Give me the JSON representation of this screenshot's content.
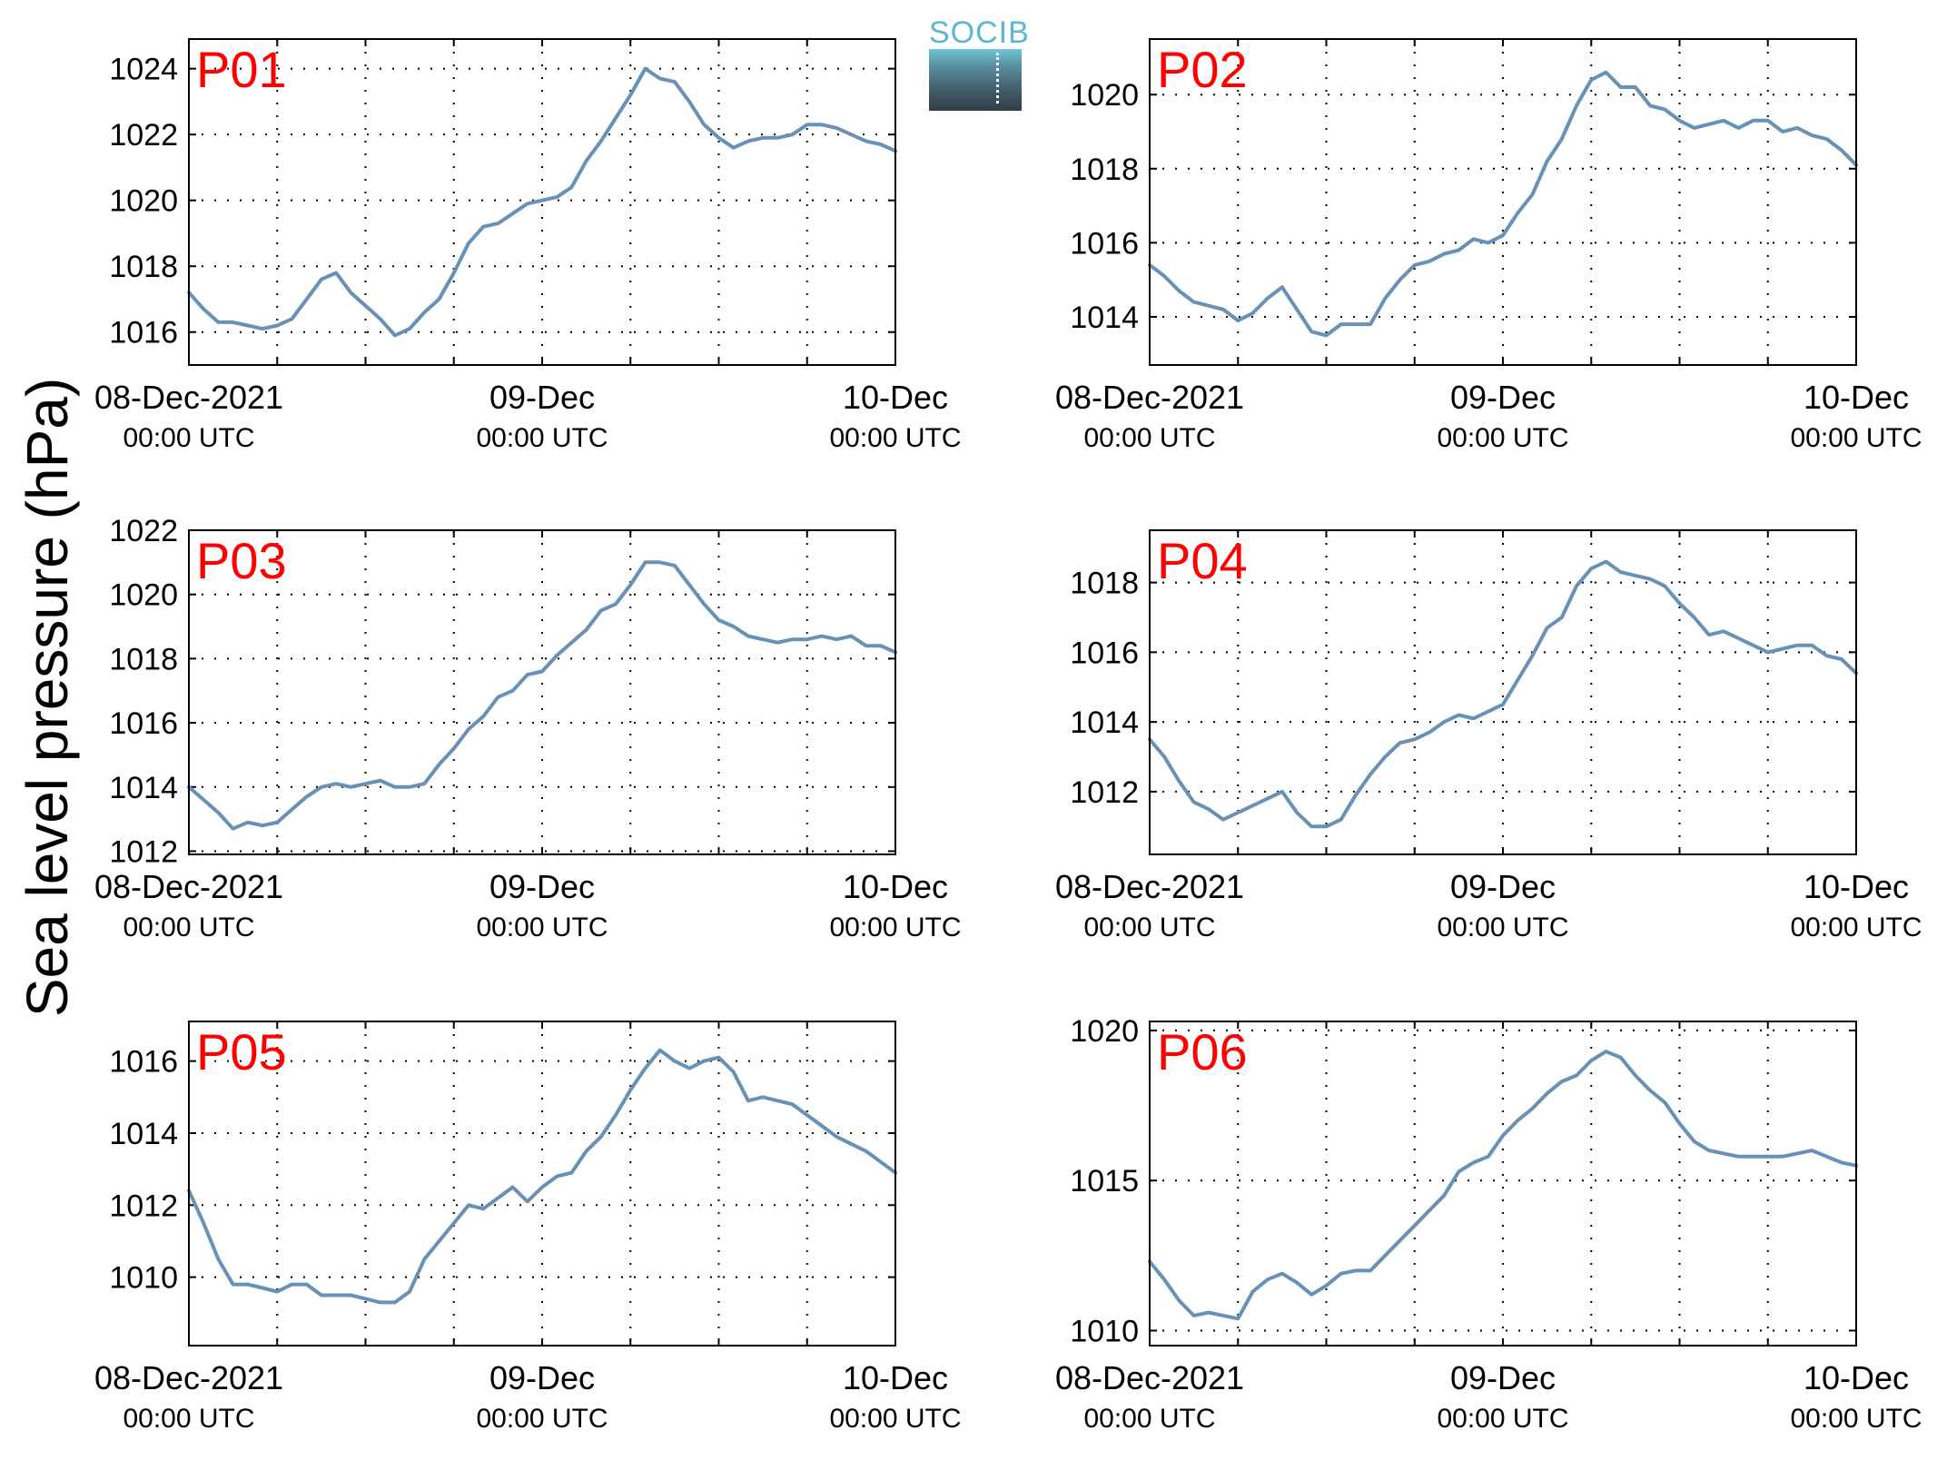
{
  "ylabel": "Sea level pressure (hPa)",
  "logo_text": "SOCIB",
  "colors": {
    "line": "#6791b7",
    "station_label": "#ff0000",
    "grid": "#000000"
  },
  "x_tick_labels": [
    {
      "date": "08-Dec-2021",
      "time": "00:00 UTC"
    },
    {
      "date": "09-Dec",
      "time": "00:00 UTC"
    },
    {
      "date": "10-Dec",
      "time": "00:00 UTC"
    }
  ],
  "chart_data": [
    {
      "type": "line",
      "title": "P01",
      "xlim": [
        0,
        48
      ],
      "ylim": [
        1015,
        1024.9
      ],
      "yticks": [
        1016,
        1018,
        1020,
        1022,
        1024
      ],
      "series": [
        {
          "x": [
            0,
            1,
            2,
            3,
            4,
            5,
            6,
            7,
            8,
            9,
            10,
            11,
            12,
            13,
            14,
            15,
            16,
            17,
            18,
            19,
            20,
            21,
            22,
            23,
            24,
            25,
            26,
            27,
            28,
            29,
            30,
            31,
            32,
            33,
            34,
            35,
            36,
            37,
            38,
            39,
            40,
            41,
            42,
            43,
            44,
            45,
            46,
            47,
            48
          ],
          "y": [
            1017.2,
            1016.7,
            1016.3,
            1016.3,
            1016.2,
            1016.1,
            1016.2,
            1016.4,
            1017.0,
            1017.6,
            1017.8,
            1017.2,
            1016.8,
            1016.4,
            1015.9,
            1016.1,
            1016.6,
            1017.0,
            1017.8,
            1018.7,
            1019.2,
            1019.3,
            1019.6,
            1019.9,
            1020.0,
            1020.1,
            1020.4,
            1021.2,
            1021.8,
            1022.5,
            1023.2,
            1024.0,
            1023.7,
            1023.6,
            1023.0,
            1022.3,
            1021.9,
            1021.6,
            1021.8,
            1021.9,
            1021.9,
            1022.0,
            1022.3,
            1022.3,
            1022.2,
            1022.0,
            1021.8,
            1021.7,
            1021.5
          ]
        }
      ]
    },
    {
      "type": "line",
      "title": "P02",
      "xlim": [
        0,
        48
      ],
      "ylim": [
        1012.7,
        1021.5
      ],
      "yticks": [
        1014,
        1016,
        1018,
        1020
      ],
      "series": [
        {
          "x": [
            0,
            1,
            2,
            3,
            4,
            5,
            6,
            7,
            8,
            9,
            10,
            11,
            12,
            13,
            14,
            15,
            16,
            17,
            18,
            19,
            20,
            21,
            22,
            23,
            24,
            25,
            26,
            27,
            28,
            29,
            30,
            31,
            32,
            33,
            34,
            35,
            36,
            37,
            38,
            39,
            40,
            41,
            42,
            43,
            44,
            45,
            46,
            47,
            48
          ],
          "y": [
            1015.4,
            1015.1,
            1014.7,
            1014.4,
            1014.3,
            1014.2,
            1013.9,
            1014.1,
            1014.5,
            1014.8,
            1014.2,
            1013.6,
            1013.5,
            1013.8,
            1013.8,
            1013.8,
            1014.5,
            1015.0,
            1015.4,
            1015.5,
            1015.7,
            1015.8,
            1016.1,
            1016.0,
            1016.2,
            1016.8,
            1017.3,
            1018.2,
            1018.8,
            1019.7,
            1020.4,
            1020.6,
            1020.2,
            1020.2,
            1019.7,
            1019.6,
            1019.3,
            1019.1,
            1019.2,
            1019.3,
            1019.1,
            1019.3,
            1019.3,
            1019.0,
            1019.1,
            1018.9,
            1018.8,
            1018.5,
            1018.1
          ]
        }
      ]
    },
    {
      "type": "line",
      "title": "P03",
      "xlim": [
        0,
        48
      ],
      "ylim": [
        1011.9,
        1022
      ],
      "yticks": [
        1012,
        1014,
        1016,
        1018,
        1020,
        1022
      ],
      "series": [
        {
          "x": [
            0,
            1,
            2,
            3,
            4,
            5,
            6,
            7,
            8,
            9,
            10,
            11,
            12,
            13,
            14,
            15,
            16,
            17,
            18,
            19,
            20,
            21,
            22,
            23,
            24,
            25,
            26,
            27,
            28,
            29,
            30,
            31,
            32,
            33,
            34,
            35,
            36,
            37,
            38,
            39,
            40,
            41,
            42,
            43,
            44,
            45,
            46,
            47,
            48
          ],
          "y": [
            1014.0,
            1013.6,
            1013.2,
            1012.7,
            1012.9,
            1012.8,
            1012.9,
            1013.3,
            1013.7,
            1014.0,
            1014.1,
            1014.0,
            1014.1,
            1014.2,
            1014.0,
            1014.0,
            1014.1,
            1014.7,
            1015.2,
            1015.8,
            1016.2,
            1016.8,
            1017.0,
            1017.5,
            1017.6,
            1018.1,
            1018.5,
            1018.9,
            1019.5,
            1019.7,
            1020.3,
            1021.0,
            1021.0,
            1020.9,
            1020.3,
            1019.7,
            1019.2,
            1019.0,
            1018.7,
            1018.6,
            1018.5,
            1018.6,
            1018.6,
            1018.7,
            1018.6,
            1018.7,
            1018.4,
            1018.4,
            1018.2
          ]
        }
      ]
    },
    {
      "type": "line",
      "title": "P04",
      "xlim": [
        0,
        48
      ],
      "ylim": [
        1010.2,
        1019.5
      ],
      "yticks": [
        1012,
        1014,
        1016,
        1018
      ],
      "series": [
        {
          "x": [
            0,
            1,
            2,
            3,
            4,
            5,
            6,
            7,
            8,
            9,
            10,
            11,
            12,
            13,
            14,
            15,
            16,
            17,
            18,
            19,
            20,
            21,
            22,
            23,
            24,
            25,
            26,
            27,
            28,
            29,
            30,
            31,
            32,
            33,
            34,
            35,
            36,
            37,
            38,
            39,
            40,
            41,
            42,
            43,
            44,
            45,
            46,
            47,
            48
          ],
          "y": [
            1013.5,
            1013.0,
            1012.3,
            1011.7,
            1011.5,
            1011.2,
            1011.4,
            1011.6,
            1011.8,
            1012.0,
            1011.4,
            1011.0,
            1011.0,
            1011.2,
            1011.9,
            1012.5,
            1013.0,
            1013.4,
            1013.5,
            1013.7,
            1014.0,
            1014.2,
            1014.1,
            1014.3,
            1014.5,
            1015.2,
            1015.9,
            1016.7,
            1017.0,
            1017.9,
            1018.4,
            1018.6,
            1018.3,
            1018.2,
            1018.1,
            1017.9,
            1017.4,
            1017.0,
            1016.5,
            1016.6,
            1016.4,
            1016.2,
            1016.0,
            1016.1,
            1016.2,
            1016.2,
            1015.9,
            1015.8,
            1015.4
          ]
        }
      ]
    },
    {
      "type": "line",
      "title": "P05",
      "xlim": [
        0,
        48
      ],
      "ylim": [
        1008.1,
        1017.1
      ],
      "yticks": [
        1010,
        1012,
        1014,
        1016
      ],
      "series": [
        {
          "x": [
            0,
            1,
            2,
            3,
            4,
            5,
            6,
            7,
            8,
            9,
            10,
            11,
            12,
            13,
            14,
            15,
            16,
            17,
            18,
            19,
            20,
            21,
            22,
            23,
            24,
            25,
            26,
            27,
            28,
            29,
            30,
            31,
            32,
            33,
            34,
            35,
            36,
            37,
            38,
            39,
            40,
            41,
            42,
            43,
            44,
            45,
            46,
            47,
            48
          ],
          "y": [
            1012.4,
            1011.5,
            1010.5,
            1009.8,
            1009.8,
            1009.7,
            1009.6,
            1009.8,
            1009.8,
            1009.5,
            1009.5,
            1009.5,
            1009.4,
            1009.3,
            1009.3,
            1009.6,
            1010.5,
            1011.0,
            1011.5,
            1012.0,
            1011.9,
            1012.2,
            1012.5,
            1012.1,
            1012.5,
            1012.8,
            1012.9,
            1013.5,
            1013.9,
            1014.5,
            1015.2,
            1015.8,
            1016.3,
            1016.0,
            1015.8,
            1016.0,
            1016.1,
            1015.7,
            1014.9,
            1015.0,
            1014.9,
            1014.8,
            1014.5,
            1014.2,
            1013.9,
            1013.7,
            1013.5,
            1013.2,
            1012.9
          ]
        }
      ]
    },
    {
      "type": "line",
      "title": "P06",
      "xlim": [
        0,
        48
      ],
      "ylim": [
        1009.5,
        1020.3
      ],
      "yticks": [
        1010,
        1015,
        1020
      ],
      "series": [
        {
          "x": [
            0,
            1,
            2,
            3,
            4,
            5,
            6,
            7,
            8,
            9,
            10,
            11,
            12,
            13,
            14,
            15,
            16,
            17,
            18,
            19,
            20,
            21,
            22,
            23,
            24,
            25,
            26,
            27,
            28,
            29,
            30,
            31,
            32,
            33,
            34,
            35,
            36,
            37,
            38,
            39,
            40,
            41,
            42,
            43,
            44,
            45,
            46,
            47,
            48
          ],
          "y": [
            1012.3,
            1011.7,
            1011.0,
            1010.5,
            1010.6,
            1010.5,
            1010.4,
            1011.3,
            1011.7,
            1011.9,
            1011.6,
            1011.2,
            1011.5,
            1011.9,
            1012.0,
            1012.0,
            1012.5,
            1013.0,
            1013.5,
            1014.0,
            1014.5,
            1015.3,
            1015.6,
            1015.8,
            1016.5,
            1017.0,
            1017.4,
            1017.9,
            1018.3,
            1018.5,
            1019.0,
            1019.3,
            1019.1,
            1018.5,
            1018.0,
            1017.6,
            1016.9,
            1016.3,
            1016.0,
            1015.9,
            1015.8,
            1015.8,
            1015.8,
            1015.8,
            1015.9,
            1016.0,
            1015.8,
            1015.6,
            1015.5
          ]
        }
      ]
    }
  ]
}
